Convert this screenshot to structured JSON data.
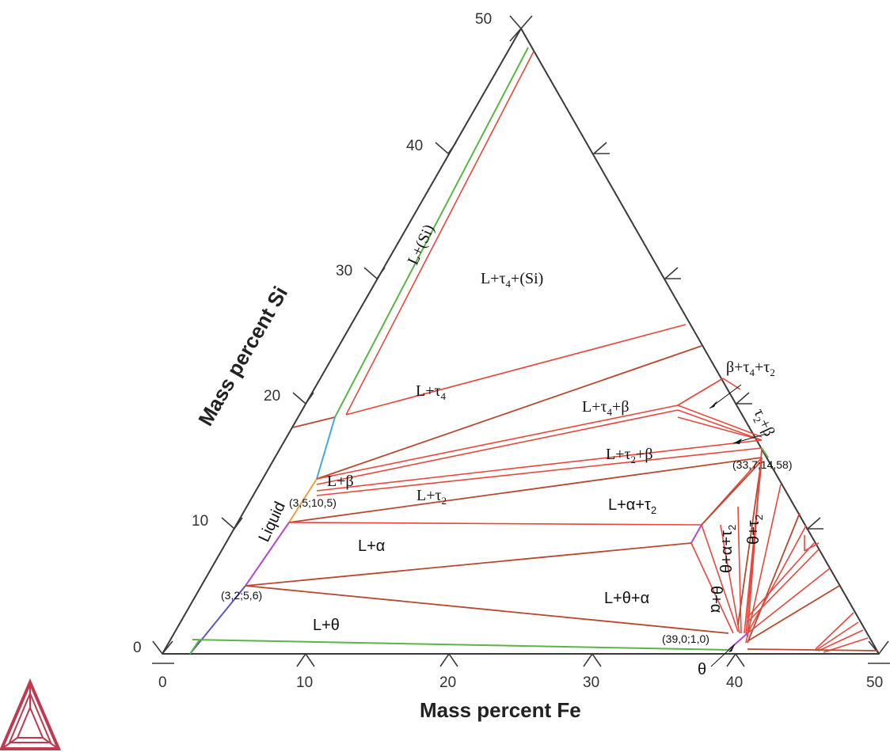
{
  "axes": {
    "bottom_title": "Mass percent Fe",
    "left_title": "Mass percent Si",
    "bottom_ticks": [
      "0",
      "10",
      "20",
      "30",
      "40",
      "50"
    ],
    "left_ticks": [
      "0",
      "10",
      "20",
      "30",
      "40",
      "50"
    ]
  },
  "regions": {
    "l_tau4_si": "L+τ4+(Si)",
    "l_si": "L+(Si)",
    "l_tau4": "L+τ4",
    "l_tau4_beta": "L+τ4+β",
    "beta_tau4_tau2": "β+τ4+τ2",
    "tau2_beta": "τ2+β",
    "l_tau2_beta": "L+τ2+β",
    "l_beta": "L+β",
    "l_tau2": "L+τ2",
    "l_alpha_tau2": "L+α+τ2",
    "theta_alpha_tau2": "θ+α+τ2",
    "theta_tau2": "θ+τ2",
    "liquid": "Liquid",
    "l_alpha": "L+α",
    "l_theta_alpha": "L+θ+α",
    "theta_alpha": "θ+α",
    "l_theta": "L+θ",
    "theta": "θ"
  },
  "points": {
    "p1": "(3,5;10,5)",
    "p2": "(3,2;5,6)",
    "p3": "(33,7;14,58)",
    "p4": "(39,0;1,0)"
  },
  "colors": {
    "frame": "#3a3a3a",
    "tie_red": "#e8473c",
    "tie_brown": "#b8492f",
    "green": "#5cb447",
    "blue": "#3fa9e0",
    "purple": "#b44ad0",
    "indigo": "#5a55c8",
    "logo": "#c0394e"
  },
  "logo": "logo-icon"
}
